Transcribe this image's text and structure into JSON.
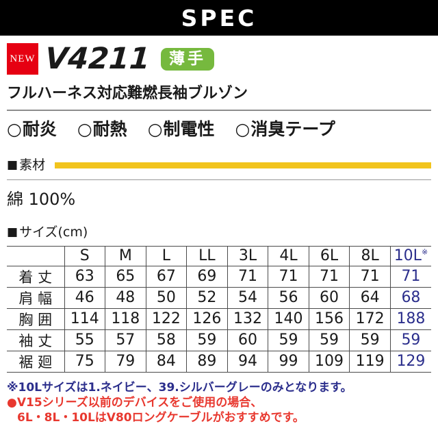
{
  "colors": {
    "header_bg": "#000000",
    "new_badge_red": "#e60012",
    "thin_badge_green": "#76b93e",
    "material_bar_yellow": "#f2c41d",
    "note_blue": "#2b2e8c",
    "note_red": "#e8382f",
    "size_accent_blue": "#2b2e8c"
  },
  "header": {
    "title": "SPEC"
  },
  "product": {
    "new_badge": "NEW",
    "model": "V4211",
    "thin_badge": "薄手",
    "name": "フルハーネス対応難燃長袖ブルゾン"
  },
  "features": {
    "marker": "○",
    "items": [
      "耐炎",
      "耐熱",
      "制電性",
      "消臭テープ"
    ]
  },
  "material": {
    "heading_marker": "■",
    "heading": "素材",
    "value": "綿 100%"
  },
  "size": {
    "heading_marker": "■",
    "heading": "サイズ(cm)",
    "table": {
      "corner": "",
      "columns": [
        "S",
        "M",
        "L",
        "LL",
        "3L",
        "4L",
        "6L",
        "8L",
        "10L"
      ],
      "last_column_note": "※",
      "rows": [
        {
          "label": "着 丈",
          "values": [
            "63",
            "65",
            "67",
            "69",
            "71",
            "71",
            "71",
            "71",
            "71"
          ]
        },
        {
          "label": "肩 幅",
          "values": [
            "46",
            "48",
            "50",
            "52",
            "54",
            "56",
            "60",
            "64",
            "68"
          ]
        },
        {
          "label": "胸 囲",
          "values": [
            "114",
            "118",
            "122",
            "126",
            "132",
            "140",
            "156",
            "172",
            "188"
          ]
        },
        {
          "label": "袖 丈",
          "values": [
            "55",
            "57",
            "58",
            "59",
            "60",
            "59",
            "59",
            "59",
            "59"
          ]
        },
        {
          "label": "裾 廻",
          "values": [
            "75",
            "79",
            "84",
            "89",
            "94",
            "99",
            "109",
            "119",
            "129"
          ]
        }
      ]
    }
  },
  "notes": [
    {
      "text": "※10Lサイズは1.ネイビー、39.シルバーグレーのみとなります。",
      "style": "blue",
      "indent": false
    },
    {
      "text": "●V15シリーズ以前のデバイスをご使用の場合、",
      "style": "red",
      "indent": false
    },
    {
      "text": "6L・8L・10LはV80ロングケーブルがおすすめです。",
      "style": "red",
      "indent": true
    }
  ]
}
